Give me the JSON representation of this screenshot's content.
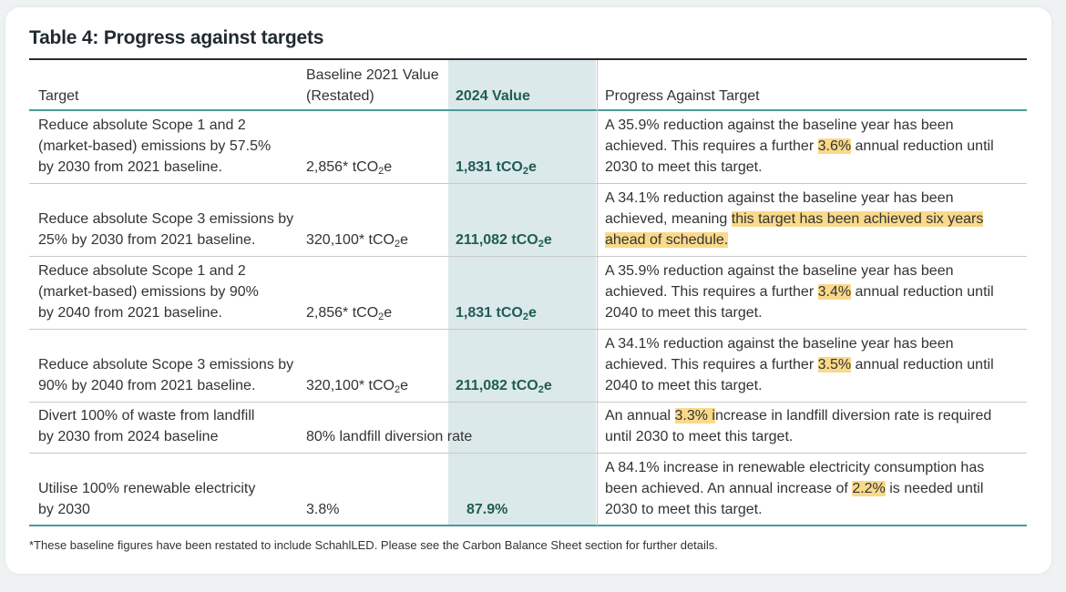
{
  "title": "Table 4: Progress against targets",
  "headers": {
    "target": "Target",
    "baseline_line1": "Baseline 2021 Value",
    "baseline_line2": "(Restated)",
    "value2024": "2024 Value",
    "progress": "Progress Against Target"
  },
  "unit_main": "tCO",
  "unit_sub": "2",
  "unit_tail": "e",
  "rows": [
    {
      "target": [
        "Reduce absolute Scope 1 and 2",
        "(market-based) emissions by 57.5%",
        "by 2030 from 2021 baseline."
      ],
      "baseline": "2,856*",
      "value2024": "1,831",
      "progress": {
        "l1": "A 35.9% reduction against the baseline year has been",
        "l2a": "achieved. This requires a further ",
        "l2hl": "3.6%",
        "l2b": " annual reduction until",
        "l3": "2030 to meet this target."
      }
    },
    {
      "target": [
        "Reduce absolute Scope 3 emissions by",
        "25% by 2030 from 2021 baseline."
      ],
      "baseline": "320,100*",
      "value2024": "211,082",
      "progress": {
        "l1": "A 34.1% reduction against the baseline year has been",
        "l2a": "achieved, meaning ",
        "l2hl": "this target has been achieved six years",
        "l3hl": "ahead of schedule."
      }
    },
    {
      "target": [
        "Reduce absolute Scope 1 and 2",
        "(market-based) emissions by 90%",
        "by 2040 from 2021 baseline."
      ],
      "baseline": "2,856*",
      "value2024": "1,831",
      "progress": {
        "l1": "A 35.9% reduction against the baseline year has been",
        "l2a": "achieved. This requires a further ",
        "l2hl": "3.4%",
        "l2b": " annual reduction until",
        "l3": "2040 to meet this target."
      }
    },
    {
      "target": [
        "Reduce absolute Scope 3 emissions by",
        "90% by 2040 from 2021 baseline."
      ],
      "baseline": "320,100*",
      "value2024": "211,082",
      "progress": {
        "l1": "A 34.1% reduction against the baseline year has been",
        "l2a": "achieved. This requires a further ",
        "l2hl": "3.5%",
        "l2b": " annual reduction until",
        "l3": "2040 to meet this target."
      }
    },
    {
      "target": [
        "Divert 100% of waste from landfill",
        "by 2030 from 2024 baseline"
      ],
      "baseline": "80% landfill diversion rate",
      "progress": {
        "l1a": "An annual ",
        "l1hl": "3.3% i",
        "l1b": "ncrease in landfill diversion rate is required",
        "l2": "until 2030 to meet this target."
      }
    },
    {
      "target": [
        "Utilise 100% renewable electricity",
        "by 2030"
      ],
      "baseline": "3.8%",
      "value2024": "87.9%",
      "progress": {
        "l1": "A 84.1% increase in renewable electricity consumption has",
        "l2a": "been achieved. An annual increase of ",
        "l2hl": "2.2%",
        "l2b": " is needed until",
        "l3": "2030 to meet this target."
      }
    }
  ],
  "footnote": "*These baseline figures have been restated to include SchahlLED. Please see the Carbon Balance Sheet section for further details."
}
